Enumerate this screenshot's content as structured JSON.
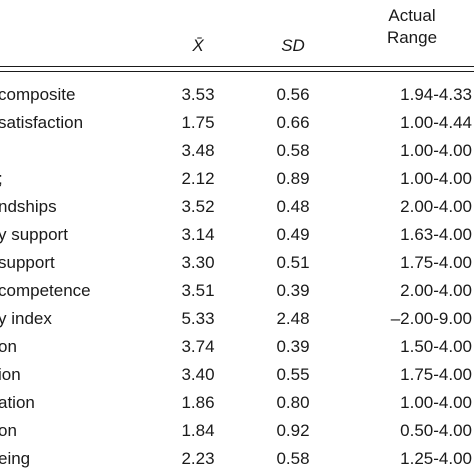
{
  "header": {
    "mean_label": "X̄",
    "sd_label": "SD",
    "range_label_line1": "Actual",
    "range_label_line2": "Range"
  },
  "rows": [
    {
      "label": "composite",
      "mean": "3.53",
      "sd": "0.56",
      "range": "1.94-4.33"
    },
    {
      "label": "satisfaction",
      "mean": "1.75",
      "sd": "0.66",
      "range": "1.00-4.44"
    },
    {
      "label": "",
      "mean": "3.48",
      "sd": "0.58",
      "range": "1.00-4.00"
    },
    {
      "label": ";",
      "mean": "2.12",
      "sd": "0.89",
      "range": "1.00-4.00"
    },
    {
      "label": "ndships",
      "mean": "3.52",
      "sd": "0.48",
      "range": "2.00-4.00"
    },
    {
      "label": "y support",
      "mean": "3.14",
      "sd": "0.49",
      "range": "1.63-4.00"
    },
    {
      "label": "support",
      "mean": "3.30",
      "sd": "0.51",
      "range": "1.75-4.00"
    },
    {
      "label": "competence",
      "mean": "3.51",
      "sd": "0.39",
      "range": "2.00-4.00"
    },
    {
      "label": "y index",
      "mean": "5.33",
      "sd": "2.48",
      "range": "–2.00-9.00"
    },
    {
      "label": "on",
      "mean": "3.74",
      "sd": "0.39",
      "range": "1.50-4.00"
    },
    {
      "label": "ion",
      "mean": "3.40",
      "sd": "0.55",
      "range": "1.75-4.00"
    },
    {
      "label": "ation",
      "mean": "1.86",
      "sd": "0.80",
      "range": "1.00-4.00"
    },
    {
      "label": "on",
      "mean": "1.84",
      "sd": "0.92",
      "range": "0.50-4.00"
    },
    {
      "label": "eing",
      "mean": "2.23",
      "sd": "0.58",
      "range": "1.25-4.00"
    }
  ]
}
